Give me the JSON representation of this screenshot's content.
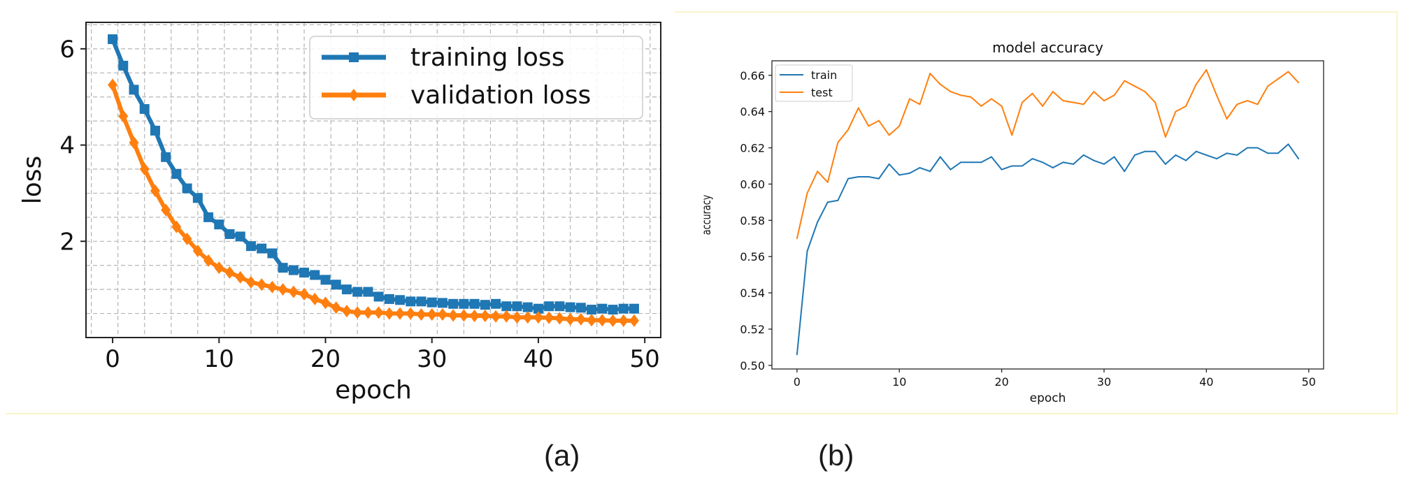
{
  "captions": {
    "a": "(a)",
    "b": "(b)"
  },
  "colors": {
    "blue": "#1f77b4",
    "orange": "#ff7f0e",
    "frame_outline": "#f6f2b8",
    "grid": "#b5b5b5"
  },
  "chart_data": [
    {
      "id": "a",
      "type": "line",
      "title": "",
      "xlabel": "epoch",
      "ylabel": "loss",
      "xlim": [
        -2.5,
        51.5
      ],
      "ylim": [
        0,
        6.55
      ],
      "xticks": [
        0,
        10,
        20,
        30,
        40,
        50
      ],
      "yticks": [
        2,
        4,
        6
      ],
      "grid": true,
      "legend_position": "top-right",
      "x": [
        0,
        1,
        2,
        3,
        4,
        5,
        6,
        7,
        8,
        9,
        10,
        11,
        12,
        13,
        14,
        15,
        16,
        17,
        18,
        19,
        20,
        21,
        22,
        23,
        24,
        25,
        26,
        27,
        28,
        29,
        30,
        31,
        32,
        33,
        34,
        35,
        36,
        37,
        38,
        39,
        40,
        41,
        42,
        43,
        44,
        45,
        46,
        47,
        48,
        49
      ],
      "series": [
        {
          "name": "training loss",
          "marker": "square",
          "values": [
            6.2,
            5.65,
            5.15,
            4.75,
            4.3,
            3.75,
            3.4,
            3.1,
            2.9,
            2.5,
            2.35,
            2.15,
            2.1,
            1.9,
            1.85,
            1.75,
            1.45,
            1.4,
            1.35,
            1.3,
            1.2,
            1.1,
            1.0,
            0.95,
            0.95,
            0.85,
            0.8,
            0.78,
            0.75,
            0.75,
            0.73,
            0.72,
            0.7,
            0.7,
            0.7,
            0.68,
            0.7,
            0.65,
            0.65,
            0.63,
            0.6,
            0.65,
            0.65,
            0.63,
            0.62,
            0.58,
            0.6,
            0.58,
            0.6,
            0.6
          ]
        },
        {
          "name": "validation loss",
          "marker": "diamond",
          "values": [
            5.25,
            4.6,
            4.05,
            3.5,
            3.05,
            2.65,
            2.3,
            2.05,
            1.8,
            1.6,
            1.45,
            1.35,
            1.25,
            1.15,
            1.1,
            1.05,
            1.0,
            0.95,
            0.9,
            0.8,
            0.72,
            0.62,
            0.55,
            0.52,
            0.52,
            0.52,
            0.5,
            0.5,
            0.5,
            0.48,
            0.48,
            0.48,
            0.46,
            0.46,
            0.45,
            0.45,
            0.44,
            0.44,
            0.42,
            0.42,
            0.42,
            0.41,
            0.4,
            0.38,
            0.38,
            0.36,
            0.36,
            0.35,
            0.35,
            0.35
          ]
        }
      ]
    },
    {
      "id": "b",
      "type": "line",
      "title": "model accuracy",
      "xlabel": "epoch",
      "ylabel": "accuracy",
      "xlim": [
        -2.45,
        51.45
      ],
      "ylim": [
        0.498,
        0.668
      ],
      "xticks": [
        0,
        10,
        20,
        30,
        40,
        50
      ],
      "yticks": [
        0.5,
        0.52,
        0.54,
        0.56,
        0.58,
        0.6,
        0.62,
        0.64,
        0.66
      ],
      "ytick_labels": [
        "0.50",
        "0.52",
        "0.54",
        "0.56",
        "0.58",
        "0.60",
        "0.62",
        "0.64",
        "0.66"
      ],
      "grid": false,
      "legend_position": "top-left",
      "x": [
        0,
        1,
        2,
        3,
        4,
        5,
        6,
        7,
        8,
        9,
        10,
        11,
        12,
        13,
        14,
        15,
        16,
        17,
        18,
        19,
        20,
        21,
        22,
        23,
        24,
        25,
        26,
        27,
        28,
        29,
        30,
        31,
        32,
        33,
        34,
        35,
        36,
        37,
        38,
        39,
        40,
        41,
        42,
        43,
        44,
        45,
        46,
        47,
        48,
        49
      ],
      "series": [
        {
          "name": "train",
          "values": [
            0.506,
            0.563,
            0.579,
            0.59,
            0.591,
            0.603,
            0.604,
            0.604,
            0.603,
            0.611,
            0.605,
            0.606,
            0.609,
            0.607,
            0.615,
            0.608,
            0.612,
            0.612,
            0.612,
            0.615,
            0.608,
            0.61,
            0.61,
            0.614,
            0.612,
            0.609,
            0.612,
            0.611,
            0.616,
            0.613,
            0.611,
            0.615,
            0.607,
            0.616,
            0.618,
            0.618,
            0.611,
            0.616,
            0.613,
            0.618,
            0.616,
            0.614,
            0.617,
            0.616,
            0.62,
            0.62,
            0.617,
            0.617,
            0.622,
            0.614
          ]
        },
        {
          "name": "test",
          "values": [
            0.57,
            0.595,
            0.607,
            0.601,
            0.623,
            0.63,
            0.642,
            0.632,
            0.635,
            0.627,
            0.632,
            0.647,
            0.644,
            0.661,
            0.655,
            0.651,
            0.649,
            0.648,
            0.643,
            0.647,
            0.643,
            0.627,
            0.645,
            0.65,
            0.643,
            0.651,
            0.646,
            0.645,
            0.644,
            0.651,
            0.646,
            0.649,
            0.657,
            0.654,
            0.651,
            0.645,
            0.626,
            0.64,
            0.643,
            0.655,
            0.663,
            0.649,
            0.636,
            0.644,
            0.646,
            0.644,
            0.654,
            0.658,
            0.662,
            0.656
          ]
        }
      ]
    }
  ]
}
